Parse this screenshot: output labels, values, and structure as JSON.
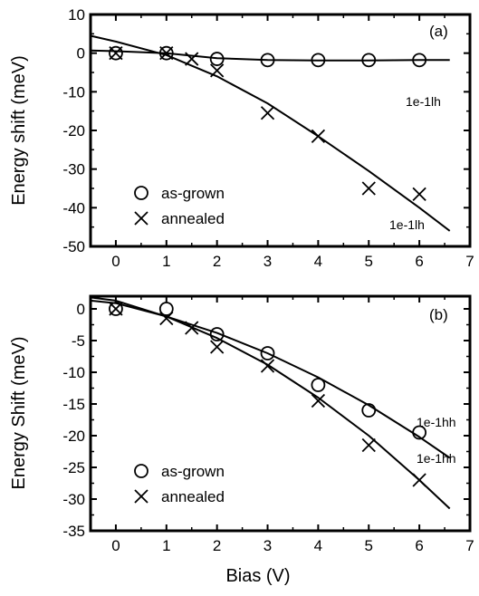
{
  "xlabel": "Bias (V)",
  "chart_data": [
    {
      "type": "scatter",
      "panel_label": "(a)",
      "title": "",
      "xlabel": "Bias (V)",
      "ylabel": "Energy shift (meV)",
      "xlim": [
        -0.5,
        7
      ],
      "ylim": [
        -50,
        10
      ],
      "xticks": [
        "0",
        "1",
        "2",
        "3",
        "4",
        "5",
        "6",
        "7"
      ],
      "yticks": [
        "10",
        "0",
        "-10",
        "-20",
        "-30",
        "-40",
        "-50"
      ],
      "legend": {
        "position": "bottom-left",
        "entries": [
          "as-grown",
          "annealed"
        ]
      },
      "series": [
        {
          "name": "as-grown",
          "marker": "circle",
          "x": [
            0,
            1,
            2,
            3,
            4,
            5,
            6
          ],
          "y": [
            0,
            0,
            -1.5,
            -1.8,
            -1.8,
            -1.8,
            -1.8
          ]
        },
        {
          "name": "annealed",
          "marker": "cross",
          "x": [
            0,
            1,
            1.5,
            2,
            3,
            4,
            5,
            6
          ],
          "y": [
            0,
            0,
            -1.5,
            -4.5,
            -15.5,
            -21.5,
            -35,
            -36.5
          ]
        }
      ],
      "fits": [
        {
          "label": "1e-1lh",
          "x": [
            -0.5,
            0,
            1,
            2,
            3,
            4,
            5,
            6,
            6.6
          ],
          "y": [
            0.7,
            0.5,
            0,
            -1.3,
            -1.8,
            -1.9,
            -1.9,
            -1.8,
            -1.8
          ]
        },
        {
          "label": "1e-1lh",
          "x": [
            -0.5,
            0,
            1,
            2,
            3,
            4,
            5,
            6,
            6.6
          ],
          "y": [
            4.5,
            3,
            -0.5,
            -6,
            -13,
            -21.5,
            -30.5,
            -40,
            -46
          ]
        }
      ]
    },
    {
      "type": "scatter",
      "panel_label": "(b)",
      "title": "",
      "xlabel": "Bias (V)",
      "ylabel": "Energy Shift (meV)",
      "xlim": [
        -0.5,
        7
      ],
      "ylim": [
        -35,
        2
      ],
      "xticks": [
        "0",
        "1",
        "2",
        "3",
        "4",
        "5",
        "6",
        "7"
      ],
      "yticks": [
        "0",
        "-5",
        "-10",
        "-15",
        "-20",
        "-25",
        "-30",
        "-35"
      ],
      "legend": {
        "position": "bottom-left",
        "entries": [
          "as-grown",
          "annealed"
        ]
      },
      "series": [
        {
          "name": "as-grown",
          "marker": "circle",
          "x": [
            0,
            1,
            2,
            3,
            4,
            5,
            6
          ],
          "y": [
            0,
            0,
            -4,
            -7,
            -12,
            -16,
            -19.5
          ]
        },
        {
          "name": "annealed",
          "marker": "cross",
          "x": [
            0,
            1,
            1.5,
            2,
            3,
            4,
            5,
            6
          ],
          "y": [
            0,
            -1.5,
            -3,
            -6,
            -9,
            -14.5,
            -21.5,
            -27
          ]
        }
      ],
      "fits": [
        {
          "label": "1e-1hh",
          "x": [
            -0.5,
            0,
            1,
            2,
            3,
            4,
            5,
            6,
            6.6
          ],
          "y": [
            1.3,
            0.9,
            -1.2,
            -3.8,
            -7,
            -10.8,
            -15.2,
            -20.2,
            -23.5
          ]
        },
        {
          "label": "1e-1hh",
          "x": [
            -0.5,
            0,
            1,
            2,
            3,
            4,
            5,
            6,
            6.6
          ],
          "y": [
            1.8,
            1.3,
            -1.2,
            -4.6,
            -8.8,
            -14,
            -20,
            -27,
            -31.5
          ]
        }
      ]
    }
  ]
}
